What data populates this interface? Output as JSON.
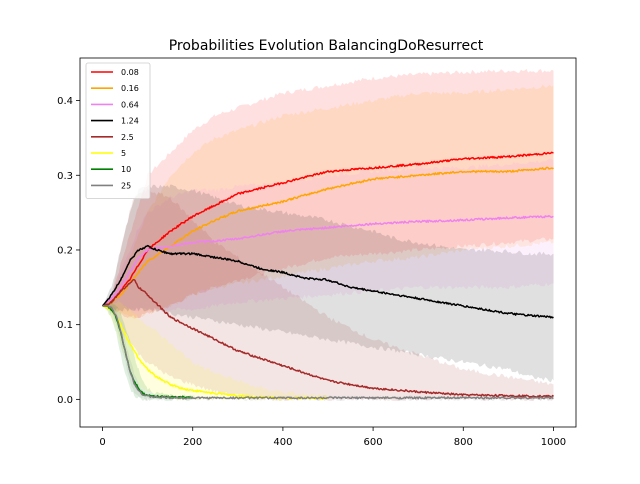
{
  "chart_data": {
    "type": "line",
    "title": "Probabilities Evolution BalancingDoResurrect",
    "xlabel": "",
    "ylabel": "",
    "xlim": [
      -50,
      1050
    ],
    "ylim": [
      -0.037,
      0.457
    ],
    "x_ticks": [
      0,
      200,
      400,
      600,
      800,
      1000
    ],
    "y_ticks": [
      0.0,
      0.1,
      0.2,
      0.3,
      0.4
    ],
    "x_tick_labels": [
      "0",
      "200",
      "400",
      "600",
      "800",
      "1000"
    ],
    "y_tick_labels": [
      "0.0",
      "0.1",
      "0.2",
      "0.3",
      "0.4"
    ],
    "grid": false,
    "legend": {
      "position": "top-left"
    },
    "series": [
      {
        "name": "0.08",
        "color": "#ff0000",
        "x": [
          0,
          20,
          40,
          60,
          80,
          100,
          150,
          200,
          250,
          300,
          400,
          500,
          600,
          700,
          800,
          900,
          1000
        ],
        "y": [
          0.125,
          0.13,
          0.145,
          0.16,
          0.18,
          0.2,
          0.225,
          0.245,
          0.26,
          0.275,
          0.29,
          0.305,
          0.31,
          0.315,
          0.322,
          0.325,
          0.33
        ],
        "upper": [
          0.125,
          0.14,
          0.18,
          0.22,
          0.26,
          0.3,
          0.33,
          0.36,
          0.38,
          0.39,
          0.41,
          0.42,
          0.43,
          0.435,
          0.438,
          0.44,
          0.44
        ],
        "lower": [
          0.125,
          0.12,
          0.115,
          0.11,
          0.11,
          0.115,
          0.125,
          0.14,
          0.15,
          0.16,
          0.175,
          0.19,
          0.195,
          0.2,
          0.205,
          0.21,
          0.215
        ]
      },
      {
        "name": "0.16",
        "color": "#ffa500",
        "x": [
          0,
          20,
          40,
          60,
          80,
          100,
          150,
          200,
          250,
          300,
          400,
          500,
          600,
          700,
          800,
          900,
          1000
        ],
        "y": [
          0.125,
          0.13,
          0.14,
          0.155,
          0.17,
          0.185,
          0.205,
          0.225,
          0.24,
          0.252,
          0.265,
          0.282,
          0.295,
          0.3,
          0.305,
          0.305,
          0.31
        ],
        "upper": [
          0.125,
          0.135,
          0.16,
          0.19,
          0.22,
          0.25,
          0.3,
          0.33,
          0.35,
          0.36,
          0.38,
          0.39,
          0.4,
          0.41,
          0.41,
          0.415,
          0.42
        ],
        "lower": [
          0.125,
          0.12,
          0.115,
          0.11,
          0.11,
          0.115,
          0.125,
          0.14,
          0.15,
          0.155,
          0.165,
          0.175,
          0.185,
          0.19,
          0.2,
          0.205,
          0.21
        ]
      },
      {
        "name": "0.64",
        "color": "#ee82ee",
        "x": [
          0,
          20,
          40,
          60,
          80,
          100,
          150,
          200,
          250,
          300,
          400,
          500,
          600,
          700,
          800,
          900,
          1000
        ],
        "y": [
          0.125,
          0.135,
          0.15,
          0.17,
          0.19,
          0.2,
          0.205,
          0.21,
          0.212,
          0.215,
          0.225,
          0.23,
          0.235,
          0.238,
          0.24,
          0.243,
          0.245
        ],
        "upper": [
          0.125,
          0.14,
          0.17,
          0.2,
          0.23,
          0.25,
          0.27,
          0.28,
          0.28,
          0.285,
          0.29,
          0.3,
          0.305,
          0.31,
          0.31,
          0.315,
          0.32
        ],
        "lower": [
          0.125,
          0.12,
          0.12,
          0.12,
          0.12,
          0.12,
          0.12,
          0.12,
          0.125,
          0.13,
          0.135,
          0.14,
          0.145,
          0.15,
          0.15,
          0.15,
          0.155
        ]
      },
      {
        "name": "1.24",
        "color": "#000000",
        "x": [
          0,
          20,
          40,
          60,
          80,
          100,
          120,
          150,
          200,
          250,
          300,
          350,
          400,
          450,
          500,
          550,
          600,
          650,
          700,
          750,
          800,
          850,
          900,
          950,
          1000
        ],
        "y": [
          0.125,
          0.14,
          0.16,
          0.185,
          0.2,
          0.205,
          0.2,
          0.195,
          0.195,
          0.19,
          0.185,
          0.175,
          0.17,
          0.162,
          0.16,
          0.15,
          0.145,
          0.14,
          0.135,
          0.13,
          0.125,
          0.12,
          0.115,
          0.112,
          0.11
        ],
        "upper": [
          0.125,
          0.15,
          0.2,
          0.25,
          0.28,
          0.285,
          0.285,
          0.285,
          0.28,
          0.27,
          0.26,
          0.255,
          0.25,
          0.245,
          0.24,
          0.232,
          0.225,
          0.215,
          0.21,
          0.205,
          0.2,
          0.2,
          0.198,
          0.195,
          0.195
        ],
        "lower": [
          0.125,
          0.12,
          0.12,
          0.12,
          0.12,
          0.12,
          0.12,
          0.115,
          0.11,
          0.105,
          0.1,
          0.095,
          0.09,
          0.085,
          0.08,
          0.075,
          0.07,
          0.065,
          0.06,
          0.055,
          0.05,
          0.045,
          0.04,
          0.03,
          0.025
        ]
      },
      {
        "name": "2.5",
        "color": "#a52a2a",
        "x": [
          0,
          20,
          40,
          60,
          70,
          80,
          100,
          150,
          200,
          250,
          300,
          400,
          500,
          600,
          700,
          800,
          900,
          1000
        ],
        "y": [
          0.125,
          0.13,
          0.145,
          0.155,
          0.16,
          0.15,
          0.14,
          0.11,
          0.095,
          0.08,
          0.065,
          0.045,
          0.025,
          0.015,
          0.01,
          0.006,
          0.005,
          0.004
        ],
        "upper": [
          0.125,
          0.14,
          0.2,
          0.25,
          0.27,
          0.275,
          0.28,
          0.27,
          0.24,
          0.21,
          0.19,
          0.15,
          0.11,
          0.08,
          0.06,
          0.04,
          0.03,
          0.02
        ],
        "lower": [
          0.125,
          0.12,
          0.1,
          0.08,
          0.07,
          0.06,
          0.05,
          0.03,
          0.02,
          0.01,
          0.005,
          0.0,
          0.0,
          0.0,
          0.0,
          0.0,
          0.0,
          0.0
        ]
      },
      {
        "name": "5",
        "color": "#ffff00",
        "x": [
          0,
          20,
          40,
          60,
          80,
          100,
          120,
          150,
          180,
          200,
          250,
          300,
          350,
          400,
          450,
          500
        ],
        "y": [
          0.125,
          0.12,
          0.1,
          0.075,
          0.055,
          0.04,
          0.03,
          0.02,
          0.014,
          0.012,
          0.008,
          0.005,
          0.003,
          0.002,
          0.002,
          0.001
        ],
        "upper": [
          0.125,
          0.13,
          0.13,
          0.12,
          0.11,
          0.1,
          0.09,
          0.075,
          0.06,
          0.05,
          0.035,
          0.025,
          0.015,
          0.01,
          0.006,
          0.004
        ],
        "lower": [
          0.125,
          0.11,
          0.07,
          0.04,
          0.02,
          0.01,
          0.005,
          0.002,
          0.0,
          0.0,
          0.0,
          0.0,
          0.0,
          0.0,
          0.0,
          0.0
        ]
      },
      {
        "name": "10",
        "color": "#008000",
        "x": [
          0,
          10,
          20,
          30,
          40,
          50,
          60,
          70,
          80,
          90,
          100,
          120,
          150,
          200
        ],
        "y": [
          0.125,
          0.125,
          0.12,
          0.11,
          0.09,
          0.065,
          0.04,
          0.025,
          0.015,
          0.008,
          0.005,
          0.004,
          0.003,
          0.003
        ],
        "upper": [
          0.125,
          0.13,
          0.13,
          0.125,
          0.115,
          0.1,
          0.08,
          0.06,
          0.04,
          0.025,
          0.015,
          0.008,
          0.005,
          0.004
        ],
        "lower": [
          0.125,
          0.12,
          0.11,
          0.09,
          0.06,
          0.035,
          0.015,
          0.005,
          0.002,
          0.0,
          0.0,
          0.0,
          0.0,
          0.0
        ]
      },
      {
        "name": "25",
        "color": "#808080",
        "x": [
          0,
          10,
          20,
          30,
          40,
          50,
          60,
          70,
          80,
          90,
          100,
          120,
          150,
          200,
          300,
          400,
          500,
          600,
          700,
          800,
          900,
          1000
        ],
        "y": [
          0.125,
          0.125,
          0.122,
          0.112,
          0.092,
          0.065,
          0.04,
          0.022,
          0.012,
          0.006,
          0.004,
          0.003,
          0.002,
          0.002,
          0.002,
          0.002,
          0.002,
          0.002,
          0.002,
          0.002,
          0.002,
          0.002
        ],
        "upper": [
          0.125,
          0.128,
          0.128,
          0.12,
          0.105,
          0.08,
          0.055,
          0.035,
          0.02,
          0.01,
          0.006,
          0.004,
          0.003,
          0.003,
          0.003,
          0.003,
          0.003,
          0.003,
          0.003,
          0.003,
          0.003,
          0.003
        ],
        "lower": [
          0.125,
          0.12,
          0.115,
          0.1,
          0.075,
          0.05,
          0.025,
          0.01,
          0.004,
          0.001,
          0.0,
          0.0,
          0.0,
          0.0,
          0.0,
          0.0,
          0.0,
          0.0,
          0.0,
          0.0,
          0.0,
          0.0
        ]
      }
    ]
  }
}
